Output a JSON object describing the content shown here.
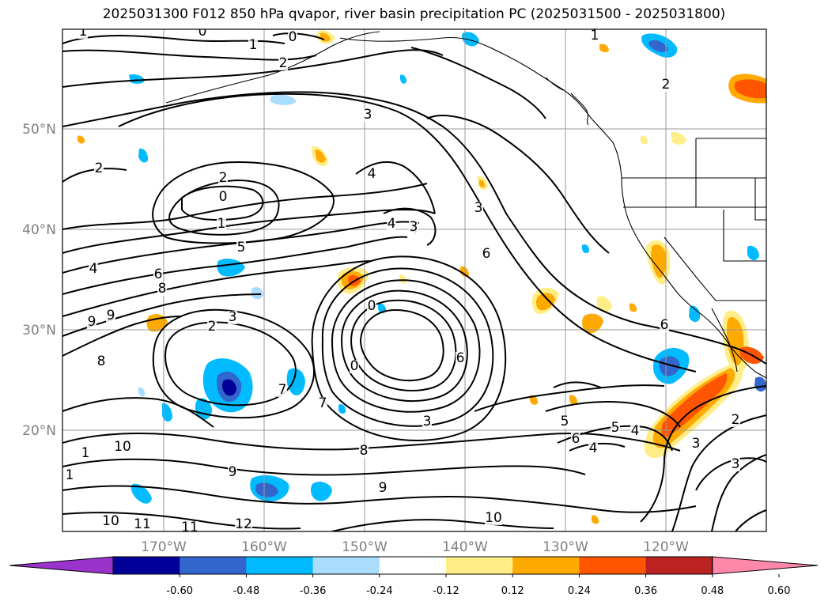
{
  "title": "2025031300 F012 850 hPa qvapor, river basin precipitation PC (2025031500 - 2025031800)",
  "map": {
    "lat_labels": [
      "50°N",
      "40°N",
      "30°N",
      "20°N"
    ],
    "lon_labels": [
      "170°W",
      "160°W",
      "150°W",
      "140°W",
      "130°W",
      "120°W"
    ],
    "contour_labels": [
      "1",
      "0",
      "1",
      "2",
      "0",
      "2",
      "2",
      "0",
      "1",
      "4",
      "3",
      "4",
      "3",
      "4",
      "5",
      "6",
      "8",
      "9",
      "9",
      "8",
      "2",
      "3",
      "0",
      "0",
      "6",
      "7",
      "7",
      "6",
      "3",
      "5",
      "4",
      "6",
      "10",
      "9",
      "8",
      "10",
      "11",
      "11",
      "12",
      "9",
      "10",
      "6",
      "3",
      "2",
      "3",
      "5",
      "4",
      "2",
      "1",
      "3",
      "4",
      "1",
      "1"
    ],
    "grid_color": "#9a9a9a",
    "coast_color": "#000000"
  },
  "colorbar": {
    "colors": [
      "#9933cc",
      "#000099",
      "#3366cc",
      "#00bbff",
      "#aaddff",
      "#ffffff",
      "#ffee88",
      "#ffaa00",
      "#ff5500",
      "#bb2222",
      "#ff88aa"
    ],
    "labels": [
      "-0.60",
      "-0.48",
      "-0.36",
      "-0.24",
      "-0.12",
      "0.12",
      "0.24",
      "0.36",
      "0.48",
      "0.60"
    ]
  }
}
